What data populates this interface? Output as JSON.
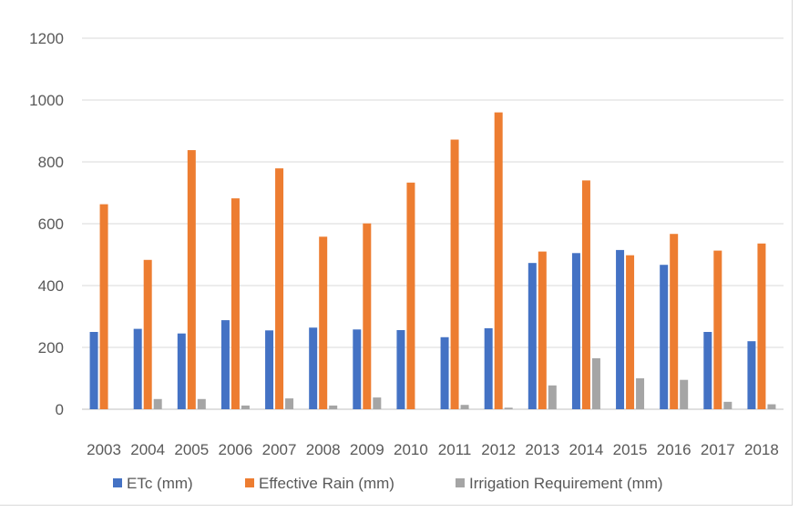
{
  "chart_data": {
    "type": "bar",
    "title": "",
    "xlabel": "",
    "ylabel": "",
    "ylim": [
      0,
      1200
    ],
    "yticks": [
      0,
      200,
      400,
      600,
      800,
      1000,
      1200
    ],
    "grid": true,
    "legend_position": "bottom",
    "categories": [
      "2003",
      "2004",
      "2005",
      "2006",
      "2007",
      "2008",
      "2009",
      "2010",
      "2011",
      "2012",
      "2013",
      "2014",
      "2015",
      "2016",
      "2017",
      "2018"
    ],
    "series": [
      {
        "name": "ETc (mm)",
        "color": "#4472C4",
        "values": [
          250,
          260,
          245,
          288,
          255,
          264,
          258,
          256,
          233,
          262,
          473,
          505,
          515,
          467,
          250,
          220
        ]
      },
      {
        "name": "Effective Rain (mm)",
        "color": "#ED7D31",
        "values": [
          663,
          483,
          838,
          682,
          779,
          558,
          601,
          733,
          872,
          960,
          510,
          740,
          498,
          567,
          513,
          536
        ]
      },
      {
        "name": "Irrigation Requirement (mm)",
        "color": "#A5A5A5",
        "values": [
          0,
          33,
          33,
          12,
          35,
          12,
          38,
          0,
          14,
          5,
          77,
          165,
          100,
          95,
          24,
          16
        ]
      }
    ]
  }
}
